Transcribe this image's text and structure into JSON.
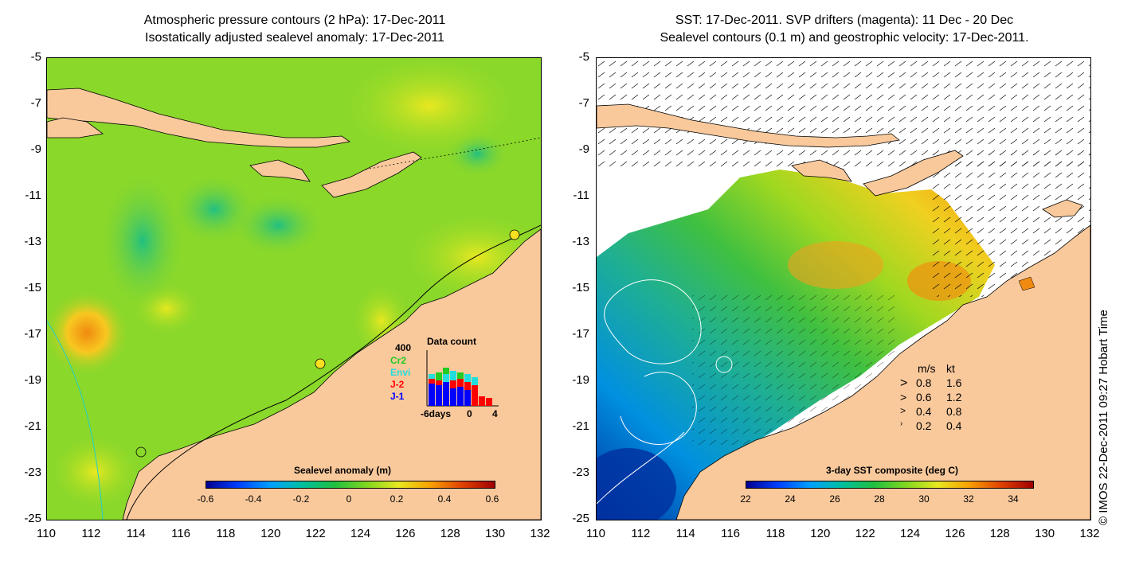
{
  "left_panel": {
    "title_line1": "Atmospheric pressure contours (2 hPa): 17-Dec-2011",
    "title_line2": "Isostatically adjusted sealevel anomaly: 17-Dec-2011",
    "colorbar_title": "Sealevel anomaly (m)",
    "colorbar_ticks": [
      "-0.6",
      "-0.4",
      "-0.2",
      "0",
      "0.2",
      "0.4",
      "0.6"
    ],
    "data_count": {
      "title": "Data count",
      "max_label": "400",
      "series": [
        {
          "name": "Cr2",
          "color": "#22cc22"
        },
        {
          "name": "Envi",
          "color": "#22dddd"
        },
        {
          "name": "J-2",
          "color": "#ff0000"
        },
        {
          "name": "J-1",
          "color": "#0000ff"
        }
      ],
      "x_labels": [
        "-6days",
        "0",
        "4"
      ]
    }
  },
  "right_panel": {
    "title_line1": "SST: 17-Dec-2011. SVP drifters (magenta): 11 Dec - 20 Dec",
    "title_line2": "Sealevel contours (0.1 m) and geostrophic velocity: 17-Dec-2011.",
    "colorbar_title": "3-day SST composite (deg C)",
    "colorbar_ticks": [
      "22",
      "24",
      "26",
      "28",
      "30",
      "32",
      "34"
    ],
    "velocity_legend": {
      "header_ms": "m/s",
      "header_kt": "kt",
      "rows": [
        {
          "ms": "0.8",
          "kt": "1.6"
        },
        {
          "ms": "0.6",
          "kt": "1.2"
        },
        {
          "ms": "0.4",
          "kt": "0.8"
        },
        {
          "ms": "0.2",
          "kt": "0.4"
        }
      ]
    }
  },
  "axes": {
    "y_ticks": [
      "-5",
      "-7",
      "-9",
      "-11",
      "-13",
      "-15",
      "-17",
      "-19",
      "-21",
      "-23",
      "-25"
    ],
    "x_ticks": [
      "110",
      "112",
      "114",
      "116",
      "118",
      "120",
      "122",
      "124",
      "126",
      "128",
      "130",
      "132"
    ]
  },
  "credit": "© IMOS 22-Dec-2011 09:27 Hobart Time",
  "colors": {
    "land": "#f9c99c",
    "sla_base": "#8ad82a",
    "ocean_white": "#ffffff"
  }
}
